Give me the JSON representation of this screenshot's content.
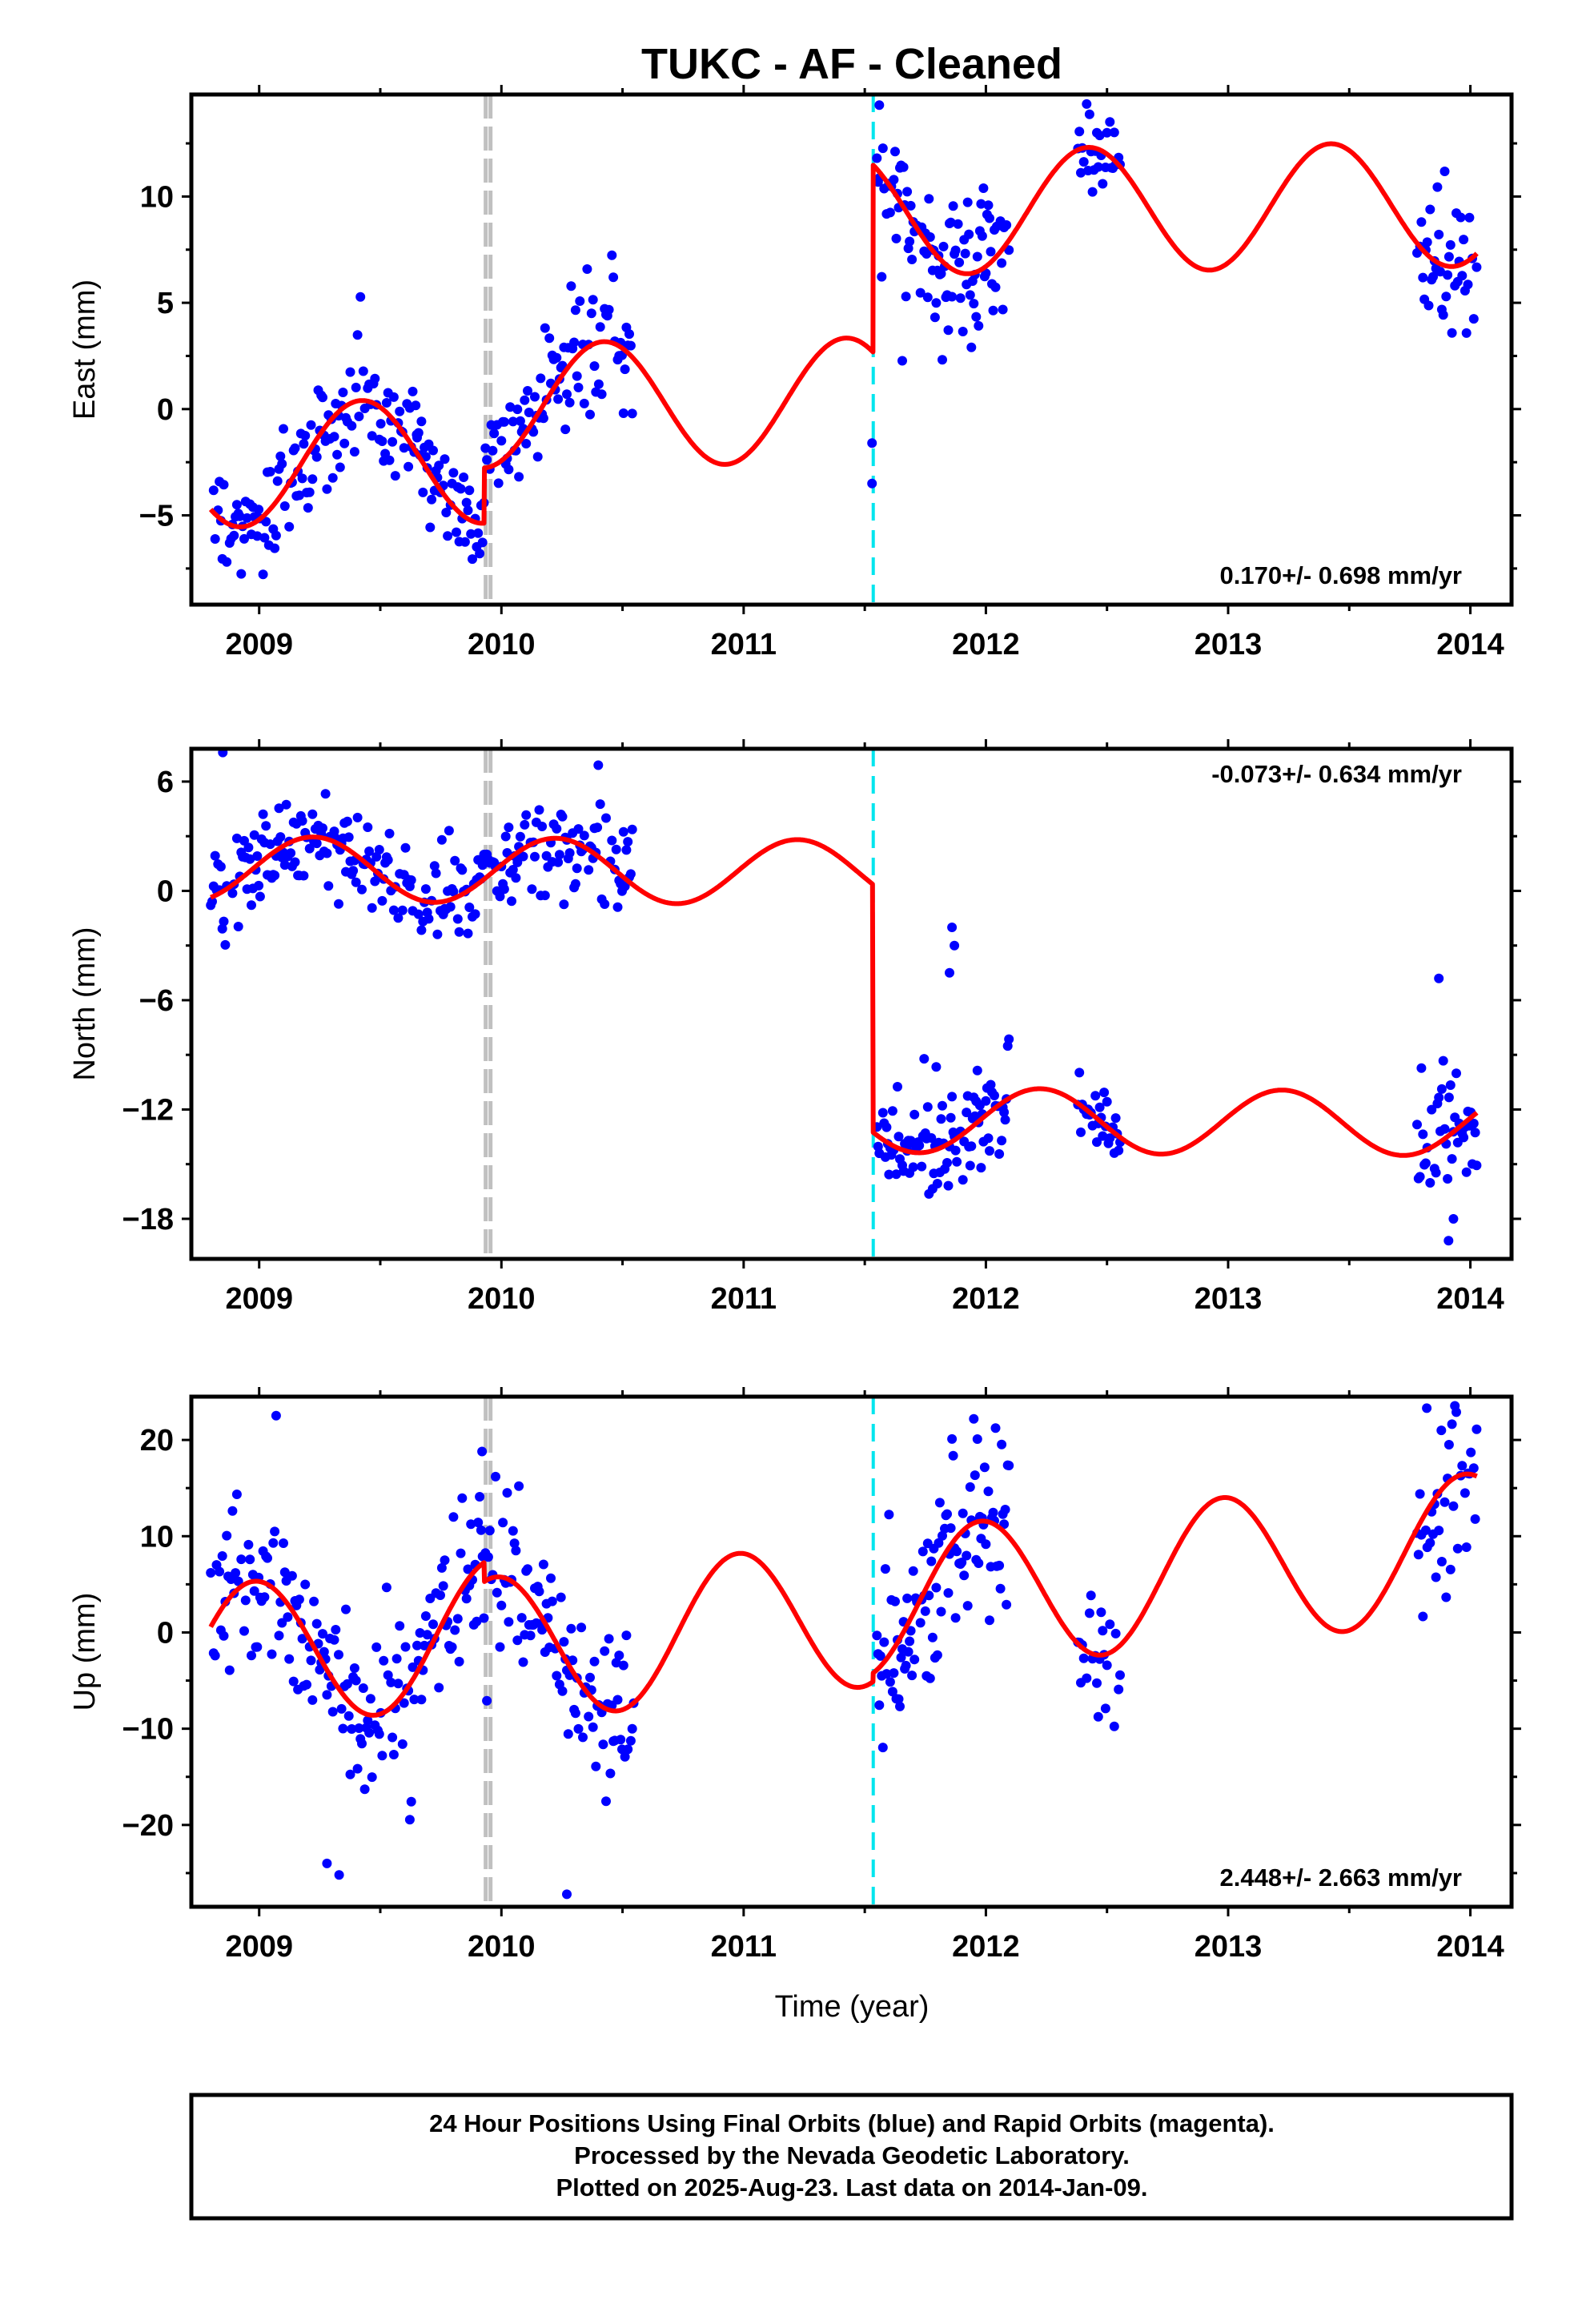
{
  "chart_data": {
    "type": "scatter",
    "title": "TUKC  - AF - Cleaned",
    "xlabel": "Time (year)",
    "xlim": [
      2008.72,
      2014.17
    ],
    "xticks": [
      2009,
      2010,
      2011,
      2012,
      2013,
      2014
    ],
    "xtick_labels": [
      "2009",
      "2010",
      "2011",
      "2012",
      "2013",
      "2014"
    ],
    "grid": false,
    "colors": {
      "points": "#0000ff",
      "model": "#ff0000",
      "equipment_change": "#c0c0c0",
      "earthquake_offset": "#00e5ee",
      "frame": "#000000"
    },
    "vertical_markers": [
      {
        "kind": "equipment-change",
        "x": 2009.935
      },
      {
        "kind": "equipment-change",
        "x": 2009.955
      },
      {
        "kind": "offset",
        "x": 2011.535
      }
    ],
    "panels": [
      {
        "id": "east",
        "ylabel": "East (mm)",
        "ylim": [
          -9.2,
          14.8
        ],
        "yticks": [
          -5,
          0,
          5,
          10
        ],
        "ytick_labels": [
          "−5",
          "0",
          "5",
          "10"
        ],
        "rate_text": "0.170+/- 0.698 mm/yr",
        "rate_position": "bottom-right",
        "model_segments": [
          {
            "x_start": 2008.8,
            "x_end": 2009.93,
            "a": -2.6,
            "b": 0.17,
            "sin_c": 1.35,
            "cos_c": -2.6
          },
          {
            "x_start": 2009.93,
            "x_end": 2011.535,
            "a": 0.0,
            "b": 0.17,
            "sin_c": 1.35,
            "cos_c": -2.6
          },
          {
            "x_start": 2011.535,
            "x_end": 2014.03,
            "a": 8.8,
            "b": 0.17,
            "sin_c": 1.35,
            "cos_c": -2.6
          }
        ],
        "points": [
          {
            "x_start": 2008.8,
            "x_end": 2010.55,
            "step": 0.006,
            "noise": 1.3,
            "out_frac": 0.02,
            "out_amp": 4.0
          },
          {
            "x_start": 2011.55,
            "x_end": 2012.1,
            "step": 0.005,
            "noise": 1.6,
            "out_frac": 0.04,
            "out_amp": -5.0
          },
          {
            "x_start": 2012.38,
            "x_end": 2012.56,
            "step": 0.006,
            "noise": 1.1,
            "out_frac": 0.0,
            "out_amp": 0
          },
          {
            "x_start": 2013.78,
            "x_end": 2014.03,
            "step": 0.006,
            "noise": 1.6,
            "out_frac": 0.02,
            "out_amp": 4.0
          }
        ],
        "extra_points": [
          [
            2011.53,
            -1.6
          ],
          [
            2011.53,
            -3.5
          ],
          [
            2011.56,
            14.3
          ],
          [
            2009.65,
            -1.2
          ]
        ]
      },
      {
        "id": "north",
        "ylabel": "North (mm)",
        "ylim": [
          -20.2,
          7.8
        ],
        "yticks": [
          -18,
          -12,
          -6,
          0,
          6
        ],
        "ytick_labels": [
          "−18",
          "−12",
          "−6",
          "0",
          "6"
        ],
        "rate_text": "-0.073+/- 0.634 mm/yr",
        "rate_position": "top-right",
        "model_segments": [
          {
            "x_start": 2008.8,
            "x_end": 2011.535,
            "a": 1.2,
            "b": -0.073,
            "sin_c": 1.75,
            "cos_c": 0.3
          },
          {
            "x_start": 2011.535,
            "x_end": 2014.03,
            "a": -12.4,
            "b": -0.073,
            "sin_c": 1.75,
            "cos_c": 0.3
          }
        ],
        "points": [
          {
            "x_start": 2008.8,
            "x_end": 2010.55,
            "step": 0.006,
            "noise": 1.2,
            "out_frac": 0.01,
            "out_amp": 3.0
          },
          {
            "x_start": 2011.55,
            "x_end": 2012.1,
            "step": 0.005,
            "noise": 1.3,
            "out_frac": 0.05,
            "out_amp": 4.0
          },
          {
            "x_start": 2012.38,
            "x_end": 2012.56,
            "step": 0.006,
            "noise": 0.9,
            "out_frac": 0.0,
            "out_amp": 0
          },
          {
            "x_start": 2013.78,
            "x_end": 2014.03,
            "step": 0.006,
            "noise": 1.4,
            "out_frac": 0.05,
            "out_amp": 3.5
          }
        ],
        "extra_points": [
          [
            2011.86,
            -2.0
          ],
          [
            2011.87,
            -3.0
          ],
          [
            2011.85,
            -4.5
          ],
          [
            2013.93,
            -18.0
          ],
          [
            2013.91,
            -19.2
          ],
          [
            2013.87,
            -4.8
          ],
          [
            2008.85,
            7.6
          ],
          [
            2010.4,
            6.9
          ]
        ]
      },
      {
        "id": "up",
        "ylabel": "Up (mm)",
        "ylim": [
          -28.5,
          24.5
        ],
        "yticks": [
          -20,
          -10,
          0,
          10,
          20
        ],
        "ytick_labels": [
          "−20",
          "−10",
          "0",
          "10",
          "20"
        ],
        "rate_text": "2.448+/- 2.663 mm/yr",
        "rate_position": "bottom-right",
        "model_segments": [
          {
            "x_start": 2008.8,
            "x_end": 2009.93,
            "a": -2.2,
            "b": 2.448,
            "sin_c": -1.0,
            "cos_c": 7.5
          },
          {
            "x_start": 2009.93,
            "x_end": 2011.535,
            "a": -4.2,
            "b": 2.448,
            "sin_c": -1.0,
            "cos_c": 7.5
          },
          {
            "x_start": 2011.535,
            "x_end": 2014.03,
            "a": -3.3,
            "b": 2.448,
            "sin_c": -1.0,
            "cos_c": 7.5
          }
        ],
        "points": [
          {
            "x_start": 2008.8,
            "x_end": 2010.55,
            "step": 0.006,
            "noise": 4.5,
            "out_frac": 0.04,
            "out_amp": 10.0
          },
          {
            "x_start": 2011.55,
            "x_end": 2012.1,
            "step": 0.005,
            "noise": 4.5,
            "out_frac": 0.04,
            "out_amp": 10.0
          },
          {
            "x_start": 2012.38,
            "x_end": 2012.56,
            "step": 0.006,
            "noise": 3.5,
            "out_frac": 0.0,
            "out_amp": 0
          },
          {
            "x_start": 2013.78,
            "x_end": 2014.03,
            "step": 0.006,
            "noise": 5.0,
            "out_frac": 0.05,
            "out_amp": 8.0
          }
        ],
        "extra_points": [
          [
            2013.82,
            23.3
          ],
          [
            2013.88,
            21.0
          ],
          [
            2009.28,
            -24.0
          ],
          [
            2009.33,
            -25.2
          ],
          [
            2010.27,
            -27.2
          ],
          [
            2009.92,
            18.8
          ],
          [
            2011.86,
            20.1
          ]
        ]
      }
    ]
  },
  "footer": {
    "line1": "24 Hour Positions Using Final Orbits (blue) and Rapid Orbits (magenta).",
    "line2": "Processed by the Nevada Geodetic Laboratory.",
    "line3": "Plotted on 2025-Aug-23. Last data on 2014-Jan-09."
  }
}
